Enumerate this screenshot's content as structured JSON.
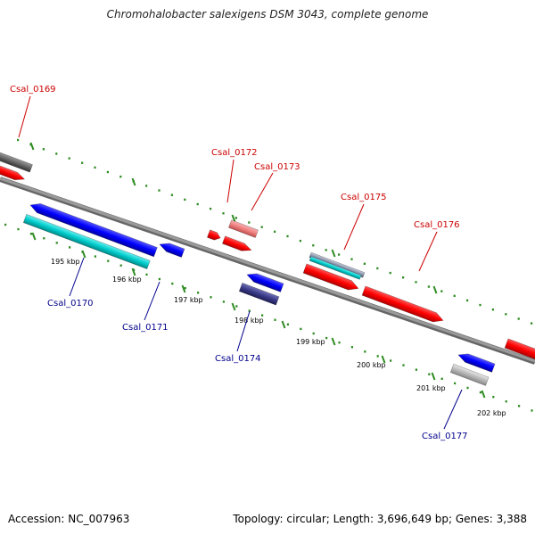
{
  "title": "Chromohalobacter salexigens DSM 3043, complete genome",
  "footer": {
    "accession": "Accession: NC_007963",
    "summary": "Topology: circular; Length: 3,696,649 bp; Genes: 3,388"
  },
  "colors": {
    "forward_label": "#cc0000",
    "reverse_label": "#00008b",
    "backbone": "#888888",
    "tick": "#2e8b22",
    "red": "#ff0000",
    "blue": "#0000ff",
    "cyan": "#00cccc",
    "gray": "#666666",
    "pink": "#f08080",
    "navy": "#3a3a88",
    "silver": "#b8b8b8"
  },
  "scale_labels": [
    "195 kbp",
    "196 kbp",
    "197 kbp",
    "198 kbp",
    "199 kbp",
    "200 kbp",
    "201 kbp",
    "202 kbp"
  ],
  "genes": [
    {
      "label": "Csal_0169",
      "strand": "forward"
    },
    {
      "label": "Csal_0170",
      "strand": "reverse"
    },
    {
      "label": "Csal_0171",
      "strand": "reverse"
    },
    {
      "label": "Csal_0172",
      "strand": "forward"
    },
    {
      "label": "Csal_0173",
      "strand": "forward"
    },
    {
      "label": "Csal_0174",
      "strand": "reverse"
    },
    {
      "label": "Csal_0175",
      "strand": "forward"
    },
    {
      "label": "Csal_0176",
      "strand": "forward"
    },
    {
      "label": "Csal_0177",
      "strand": "reverse"
    }
  ]
}
